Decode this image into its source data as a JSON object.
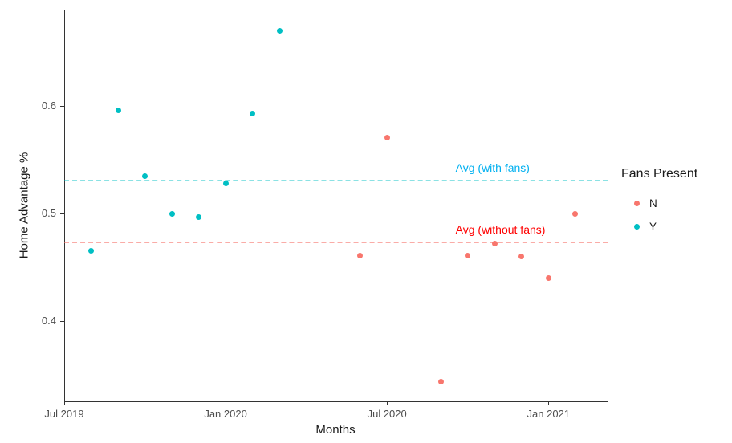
{
  "chart_data": {
    "type": "scatter",
    "title": "",
    "xlabel": "Months",
    "ylabel": "Home Advantage %",
    "grid": "off",
    "legend_position": "right",
    "x_axis": {
      "tick_labels": [
        "Jul 2019",
        "Jan 2020",
        "Jul 2020",
        "Jan 2021"
      ],
      "tick_months": [
        0,
        6,
        12,
        18
      ],
      "domain_months": [
        0,
        20.2
      ]
    },
    "y_axis": {
      "tick_values": [
        0.4,
        0.5,
        0.6
      ],
      "tick_labels": [
        "0.4",
        "0.5",
        "0.6"
      ],
      "domain": [
        0.325,
        0.69
      ]
    },
    "legend": {
      "title": "Fans Present"
    },
    "series": [
      {
        "name": "N",
        "color": "#F8766D",
        "points": [
          {
            "month": "Jun 2020",
            "m": 11,
            "value": 0.461
          },
          {
            "month": "Jul 2020",
            "m": 12,
            "value": 0.571
          },
          {
            "month": "Sep 2020",
            "m": 14,
            "value": 0.343
          },
          {
            "month": "Oct 2020",
            "m": 15,
            "value": 0.461
          },
          {
            "month": "Nov 2020",
            "m": 16,
            "value": 0.472
          },
          {
            "month": "Dec 2020",
            "m": 17,
            "value": 0.46
          },
          {
            "month": "Jan 2021",
            "m": 18,
            "value": 0.44
          },
          {
            "month": "Feb 2021",
            "m": 19,
            "value": 0.5
          }
        ]
      },
      {
        "name": "Y",
        "color": "#00BFC4",
        "points": [
          {
            "month": "Aug 2019",
            "m": 1,
            "value": 0.465
          },
          {
            "month": "Sep 2019",
            "m": 2,
            "value": 0.596
          },
          {
            "month": "Oct 2019",
            "m": 3,
            "value": 0.535
          },
          {
            "month": "Nov 2019",
            "m": 4,
            "value": 0.5
          },
          {
            "month": "Dec 2019",
            "m": 5,
            "value": 0.497
          },
          {
            "month": "Jan 2020",
            "m": 6,
            "value": 0.528
          },
          {
            "month": "Feb 2020",
            "m": 7,
            "value": 0.593
          },
          {
            "month": "Mar 2020",
            "m": 8,
            "value": 0.67
          }
        ]
      }
    ],
    "reference_lines": [
      {
        "label": "Avg (with fans)",
        "value": 0.531,
        "line_color": "#00BFC4",
        "line_opacity": 0.45,
        "text_color": "#00B0F0",
        "label_m": 14.55
      },
      {
        "label": "Avg (without fans)",
        "value": 0.473,
        "line_color": "#F8766D",
        "line_opacity": 0.6,
        "text_color": "#FF0000",
        "label_m": 14.55
      }
    ]
  }
}
